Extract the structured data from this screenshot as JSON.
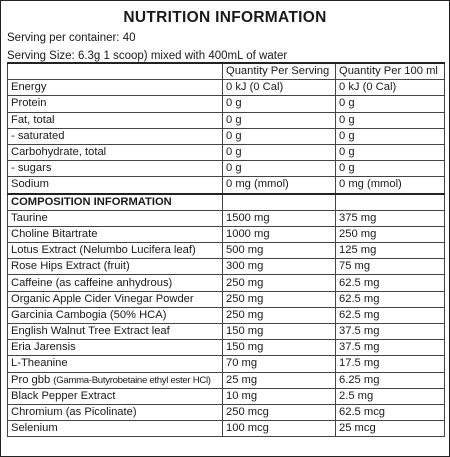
{
  "title": "NUTRITION INFORMATION",
  "serving_per_container": "Serving per container: 40",
  "serving_size": "Serving Size: 6.3g 1 scoop) mixed with 400mL of water",
  "header": {
    "col1": "",
    "col2": "Quantity Per Serving",
    "col3": "Quantity Per 100 ml"
  },
  "nutrition_rows": [
    [
      "Energy",
      "0 kJ (0 Cal)",
      "0 kJ (0 Cal)"
    ],
    [
      "Protein",
      "0 g",
      "0 g"
    ],
    [
      "Fat, total",
      "0 g",
      "0 g"
    ],
    [
      "- saturated",
      "0 g",
      "0 g"
    ],
    [
      "Carbohydrate, total",
      "0 g",
      "0 g"
    ],
    [
      "- sugars",
      "0 g",
      "0 g"
    ],
    [
      "Sodium",
      "0 mg (mmol)",
      "0 mg (mmol)"
    ]
  ],
  "composition_heading": "COMPOSITION INFORMATION",
  "composition_rows": [
    [
      "Taurine",
      "1500 mg",
      "375 mg"
    ],
    [
      "Choline Bitartrate",
      "1000 mg",
      "250 mg"
    ],
    [
      "Lotus Extract (Nelumbo Lucifera leaf)",
      "500 mg",
      "125 mg"
    ],
    [
      "Rose Hips Extract (fruit)",
      "300 mg",
      "75 mg"
    ],
    [
      "Caffeine (as caffeine anhydrous)",
      "250 mg",
      "62.5 mg"
    ],
    [
      "Organic Apple Cider Vinegar Powder",
      "250 mg",
      "62.5 mg"
    ],
    [
      "Garcinia Cambogia (50% HCA)",
      "250 mg",
      "62.5 mg"
    ],
    [
      "English Walnut Tree Extract leaf",
      "150 mg",
      "37.5 mg"
    ],
    [
      "Eria Jarensis",
      "150 mg",
      "37.5 mg"
    ],
    [
      "L-Theanine",
      "70 mg",
      "17.5 mg"
    ],
    [
      "Pro gbb",
      "25 mg",
      "6.25 mg"
    ],
    [
      "Black Pepper Extract",
      "10 mg",
      "2.5 mg"
    ],
    [
      "Chromium (as Picolinate)",
      "250 mcg",
      "62.5 mcg"
    ],
    [
      "Selenium",
      "100 mcg",
      "25 mcg"
    ]
  ],
  "pro_gbb_note": "(Gamma-Butyrobetaine ethyl ester HCl)"
}
